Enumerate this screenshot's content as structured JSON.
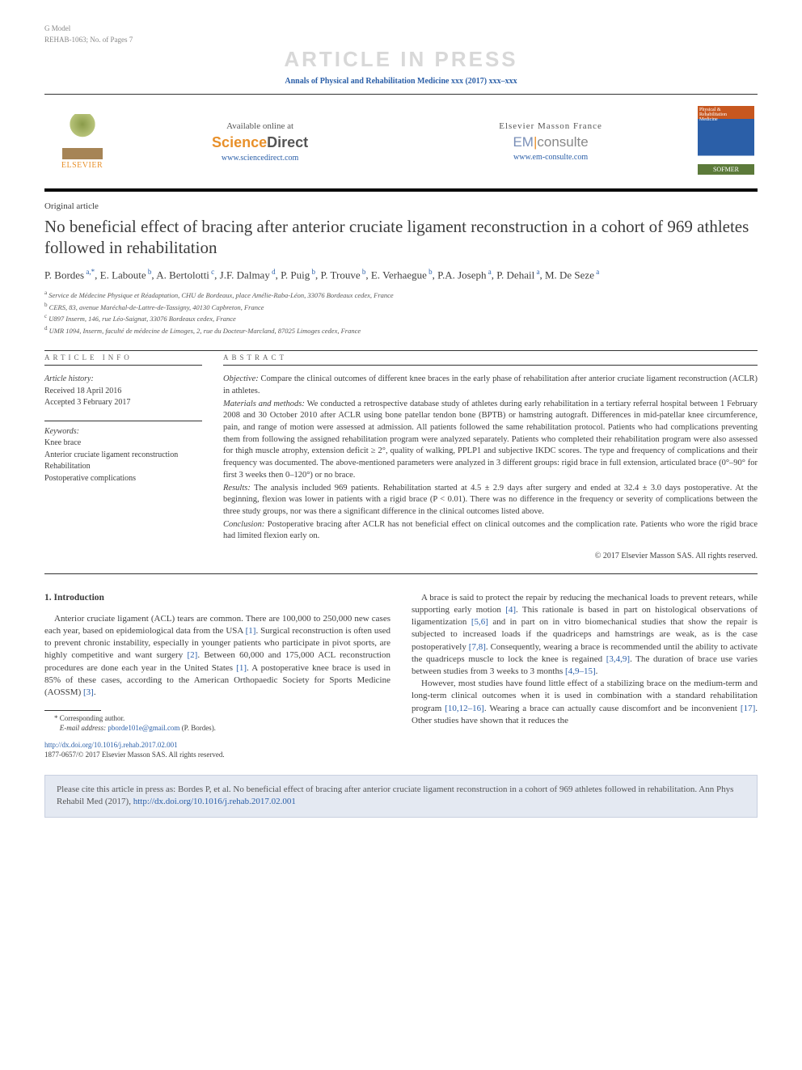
{
  "meta": {
    "model_line": "G Model",
    "ref_line": "REHAB-1063; No. of Pages 7",
    "watermark": "ARTICLE IN PRESS",
    "journal_citation": "Annals of Physical and Rehabilitation Medicine xxx (2017) xxx–xxx"
  },
  "header": {
    "elsevier_label": "ELSEVIER",
    "available_label": "Available online at",
    "sciencedirect_brand_a": "Science",
    "sciencedirect_brand_b": "Direct",
    "sciencedirect_url": "www.sciencedirect.com",
    "em_label": "Elsevier Masson France",
    "em_brand_a": "EM",
    "em_brand_b": "consulte",
    "em_url": "www.em-consulte.com",
    "cover_line1": "Physical &",
    "cover_line2": "Rehabilitation",
    "cover_line3": "Medicine",
    "cover_sofmer": "SOFMER"
  },
  "article": {
    "type": "Original article",
    "title": "No beneficial effect of bracing after anterior cruciate ligament reconstruction in a cohort of 969 athletes followed in rehabilitation",
    "authors_html": "P. Bordes<sup> a,*</sup>, E. Laboute<sup> b</sup>, A. Bertolotti<sup> c</sup>, J.F. Dalmay<sup> d</sup>, P. Puig<sup> b</sup>, P. Trouve<sup> b</sup>, E. Verhaegue<sup> b</sup>, P.A. Joseph<sup> a</sup>, P. Dehail<sup> a</sup>, M. De Seze<sup> a</sup>",
    "affiliations": {
      "a": "Service de Médecine Physique et Réadaptation, CHU de Bordeaux, place Amélie-Raba-Léon, 33076 Bordeaux cedex, France",
      "b": "CERS, 83, avenue Maréchal-de-Lattre-de-Tassigny, 40130 Capbreton, France",
      "c": "U897 Inserm, 146, rue Léo-Saignat, 33076 Bordeaux cedex, France",
      "d": "UMR 1094, Inserm, faculté de médecine de Limoges, 2, rue du Docteur-Marcland, 87025 Limoges cedex, France"
    }
  },
  "info": {
    "section_label": "ARTICLE INFO",
    "history_head": "Article history:",
    "received": "Received 18 April 2016",
    "accepted": "Accepted 3 February 2017",
    "keywords_head": "Keywords:",
    "keywords": [
      "Knee brace",
      "Anterior cruciate ligament reconstruction",
      "Rehabilitation",
      "Postoperative complications"
    ]
  },
  "abstract": {
    "section_label": "ABSTRACT",
    "objective_label": "Objective:",
    "objective": "Compare the clinical outcomes of different knee braces in the early phase of rehabilitation after anterior cruciate ligament reconstruction (ACLR) in athletes.",
    "methods_label": "Materials and methods:",
    "methods": "We conducted a retrospective database study of athletes during early rehabilitation in a tertiary referral hospital between 1 February 2008 and 30 October 2010 after ACLR using bone patellar tendon bone (BPTB) or hamstring autograft. Differences in mid-patellar knee circumference, pain, and range of motion were assessed at admission. All patients followed the same rehabilitation protocol. Patients who had complications preventing them from following the assigned rehabilitation program were analyzed separately. Patients who completed their rehabilitation program were also assessed for thigh muscle atrophy, extension deficit ≥ 2°, quality of walking, PPLP1 and subjective IKDC scores. The type and frequency of complications and their frequency was documented. The above-mentioned parameters were analyzed in 3 different groups: rigid brace in full extension, articulated brace (0°–90° for first 3 weeks then 0–120°) or no brace.",
    "results_label": "Results:",
    "results": "The analysis included 969 patients. Rehabilitation started at 4.5 ± 2.9 days after surgery and ended at 32.4 ± 3.0 days postoperative. At the beginning, flexion was lower in patients with a rigid brace (P < 0.01). There was no difference in the frequency or severity of complications between the three study groups, nor was there a significant difference in the clinical outcomes listed above.",
    "conclusion_label": "Conclusion:",
    "conclusion": "Postoperative bracing after ACLR has not beneficial effect on clinical outcomes and the complication rate. Patients who wore the rigid brace had limited flexion early on.",
    "copyright": "© 2017 Elsevier Masson SAS. All rights reserved."
  },
  "body": {
    "intro_heading": "1. Introduction",
    "p1a": "Anterior cruciate ligament (ACL) tears are common. There are 100,000 to 250,000 new cases each year, based on epidemiological data from the USA ",
    "r1": "[1]",
    "p1b": ". Surgical reconstruction is often used to prevent chronic instability, especially in younger patients who participate in pivot sports, are highly competitive and want surgery ",
    "r2": "[2]",
    "p1c": ". Between 60,000 and 175,000 ACL reconstruction procedures are done each year in the United States ",
    "r1b": "[1]",
    "p1d": ". A postoperative knee brace is used in 85% of these cases, according to the American Orthopaedic Society for Sports Medicine (AOSSM) ",
    "r3": "[3]",
    "p1e": ".",
    "p2a": "A brace is said to protect the repair by reducing the mechanical loads to prevent retears, while supporting early motion ",
    "r4": "[4]",
    "p2b": ". This rationale is based in part on histological observations of ligamentization ",
    "r56": "[5,6]",
    "p2c": " and in part on in vitro biomechanical studies that show the repair is subjected to increased loads if the quadriceps and hamstrings are weak, as is the case postoperatively ",
    "r78": "[7,8]",
    "p2d": ". Consequently, wearing a brace is recommended until the ability to activate the quadriceps muscle to lock the knee is regained ",
    "r349": "[3,4,9]",
    "p2e": ". The duration of brace use varies between studies from 3 weeks to 3 months ",
    "r4915": "[4,9–15]",
    "p2f": ".",
    "p3a": "However, most studies have found little effect of a stabilizing brace on the medium-term and long-term clinical outcomes when it is used in combination with a standard rehabilitation program ",
    "r101216": "[10,12–16]",
    "p3b": ". Wearing a brace can actually cause discomfort and be inconvenient ",
    "r17": "[17]",
    "p3c": ". Other studies have shown that it reduces the"
  },
  "footnote": {
    "corr_label": "* Corresponding author.",
    "email_label": "E-mail address:",
    "email": "pborde101e@gmail.com",
    "email_who": "(P. Bordes)."
  },
  "doi": {
    "url": "http://dx.doi.org/10.1016/j.rehab.2017.02.001",
    "issn_line": "1877-0657/© 2017 Elsevier Masson SAS. All rights reserved."
  },
  "cite": {
    "text_a": "Please cite this article in press as: Bordes P, et al. No beneficial effect of bracing after anterior cruciate ligament reconstruction in a cohort of 969 athletes followed in rehabilitation. Ann Phys Rehabil Med (2017), ",
    "url": "http://dx.doi.org/10.1016/j.rehab.2017.02.001"
  },
  "colors": {
    "link": "#2b5fa8",
    "orange": "#e8902a",
    "watermark": "#d8d8d8",
    "cite_bg": "#e4e9f2"
  }
}
